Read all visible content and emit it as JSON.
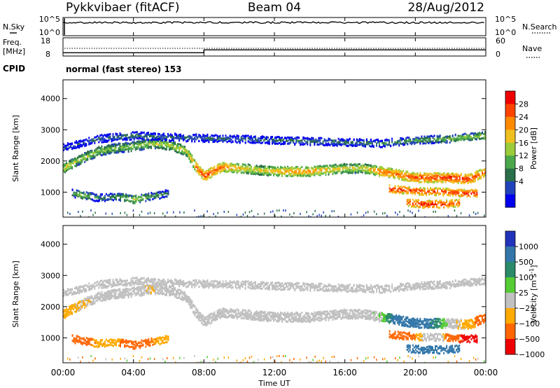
{
  "header": {
    "station": "Pykkvibaer (fitACF)",
    "beam": "Beam 04",
    "date": "28/Aug/2012"
  },
  "side_labels": {
    "nsky": "N.Sky",
    "nsearch": "N.Search",
    "freq_line1": "Freq.",
    "freq_line2": "[MHz]",
    "nave": "Nave",
    "cpid": "CPID"
  },
  "cpid_text": "normal (fast stereo) 153",
  "x_axis": {
    "label": "Time UT",
    "ticks": [
      "00:00",
      "04:00",
      "08:00",
      "12:00",
      "16:00",
      "20:00",
      "00:00"
    ],
    "range_hours": [
      0,
      24
    ]
  },
  "noise_panel": {
    "left_ticks": [
      "10^5",
      "10^0"
    ],
    "right_ticks": [
      "10^5",
      "10^0"
    ]
  },
  "freq_panel": {
    "left_ticks": [
      "18",
      "8"
    ],
    "right_ticks": [
      "60",
      "0"
    ]
  },
  "power_colorbar": {
    "label": "Power [dB]",
    "ticks": [
      "28",
      "24",
      "20",
      "16",
      "12",
      "8",
      "4"
    ],
    "colors": [
      "#0000ee",
      "#2244bb",
      "#2a6e4a",
      "#4aa84a",
      "#9ccc3a",
      "#f0c020",
      "#ff8a00",
      "#ff4400",
      "#ee0000"
    ]
  },
  "velocity_colorbar": {
    "label": "Velocity [m s",
    "label_sup": "-1",
    "label_end": "]",
    "ticks": [
      "1000",
      "500",
      "100",
      "25",
      "−25",
      "−100",
      "−500",
      "−1000"
    ],
    "colors": [
      "#2233bb",
      "#3377aa",
      "#2a8a6a",
      "#55cc33",
      "#c0c0c0",
      "#ffaa00",
      "#ff6600",
      "#ee0000"
    ]
  },
  "chart_data": {
    "type": "heatmap",
    "panels": [
      "noise",
      "frequency",
      "power",
      "velocity"
    ],
    "y_axis": {
      "label": "Slant Range [km]",
      "ticks": [
        1000,
        2000,
        3000,
        4000
      ],
      "range_km": [
        200,
        4600
      ]
    },
    "frequency_mhz": [
      {
        "t_start": 0.0,
        "t_end": 8.0,
        "value": 9.8
      },
      {
        "t_start": 8.0,
        "t_end": 24.0,
        "value": 11.4
      }
    ],
    "power_scale_db": [
      0,
      30
    ],
    "velocity_scale_ms": [
      -1000,
      1000
    ],
    "scatter_bands": [
      {
        "name": "main F-region echo",
        "t": [
          0.0,
          1.0,
          2.0,
          3.0,
          4.0,
          5.0,
          6.0,
          7.0,
          7.5,
          8.0,
          9.0,
          10.0,
          11.0,
          12.0,
          13.0,
          14.0,
          15.0,
          16.0,
          17.0,
          18.0,
          19.0,
          20.0,
          21.0,
          22.0,
          23.0,
          24.0
        ],
        "range_km": [
          1750,
          2050,
          2300,
          2400,
          2450,
          2550,
          2500,
          2300,
          1800,
          1500,
          1800,
          1750,
          1700,
          1650,
          1650,
          1650,
          1700,
          1750,
          1750,
          1650,
          1550,
          1450,
          1450,
          1450,
          1400,
          1650
        ],
        "power_db": [
          18,
          16,
          15,
          14,
          15,
          16,
          16,
          18,
          24,
          26,
          24,
          20,
          18,
          20,
          22,
          22,
          20,
          18,
          18,
          24,
          24,
          26,
          26,
          27,
          27,
          24
        ],
        "velocity_ms": [
          -50,
          -30,
          0,
          0,
          0,
          -20,
          0,
          0,
          0,
          0,
          0,
          0,
          0,
          0,
          0,
          0,
          0,
          0,
          0,
          20,
          150,
          150,
          100,
          0,
          -50,
          -200
        ]
      },
      {
        "name": "upper band",
        "t": [
          0.0,
          2.0,
          4.0,
          6.0,
          18.0,
          20.0,
          22.0,
          24.0
        ],
        "range_km": [
          2400,
          2700,
          2800,
          2750,
          2550,
          2650,
          2700,
          2800
        ],
        "power_db": [
          6,
          8,
          10,
          8,
          10,
          12,
          14,
          16
        ],
        "velocity_ms": [
          0,
          0,
          0,
          0,
          0,
          0,
          0,
          0
        ]
      },
      {
        "name": "near-range echo",
        "t": [
          0.5,
          1.0,
          2.0,
          3.0,
          4.0,
          5.0,
          6.0
        ],
        "range_km": [
          950,
          900,
          800,
          850,
          750,
          850,
          950
        ],
        "power_db": [
          12,
          16,
          10,
          12,
          18,
          12,
          10
        ],
        "velocity_ms": [
          -400,
          -150,
          -80,
          -50,
          -300,
          -100,
          -50
        ]
      },
      {
        "name": "late near-range echo",
        "t": [
          18.5,
          19.5,
          20.5,
          21.5,
          22.5,
          23.5
        ],
        "range_km": [
          1100,
          1050,
          1000,
          1000,
          950,
          950
        ],
        "power_db": [
          28,
          27,
          26,
          26,
          27,
          28
        ],
        "velocity_ms": [
          -300,
          -200,
          0,
          0,
          -500,
          -600
        ]
      },
      {
        "name": "low band",
        "t": [
          19.5,
          20.5,
          21.5,
          22.5
        ],
        "range_km": [
          650,
          600,
          600,
          650
        ],
        "power_db": [
          26,
          28,
          28,
          24
        ],
        "velocity_ms": [
          200,
          250,
          250,
          200
        ]
      }
    ]
  }
}
